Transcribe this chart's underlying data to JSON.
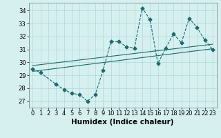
{
  "xlabel": "Humidex (Indice chaleur)",
  "bg_color": "#d6f0f0",
  "line_color": "#1a6b6b",
  "grid_color": "#afd8d8",
  "xlim": [
    -0.5,
    23.5
  ],
  "ylim": [
    26.5,
    34.6
  ],
  "yticks": [
    27,
    28,
    29,
    30,
    31,
    32,
    33,
    34
  ],
  "xticks": [
    0,
    1,
    2,
    3,
    4,
    5,
    6,
    7,
    8,
    9,
    10,
    11,
    12,
    13,
    14,
    15,
    16,
    17,
    18,
    19,
    20,
    21,
    22,
    23
  ],
  "series1_x": [
    0,
    1,
    3,
    4,
    5,
    6,
    7,
    8,
    9,
    10,
    11,
    12,
    13,
    14,
    15,
    16,
    17,
    18,
    19,
    20,
    21,
    22,
    23
  ],
  "series1_y": [
    29.5,
    29.2,
    28.3,
    27.9,
    27.6,
    27.5,
    27.0,
    27.5,
    29.4,
    31.6,
    31.6,
    31.2,
    31.1,
    34.2,
    33.3,
    29.9,
    31.1,
    32.2,
    31.5,
    33.4,
    32.7,
    31.7,
    31.0
  ],
  "trend1_x": [
    0,
    23
  ],
  "trend1_y": [
    29.3,
    31.05
  ],
  "trend2_x": [
    0,
    23
  ],
  "trend2_y": [
    29.75,
    31.4
  ],
  "marker_size": 2.5,
  "tick_fontsize": 6,
  "xlabel_fontsize": 7.5
}
